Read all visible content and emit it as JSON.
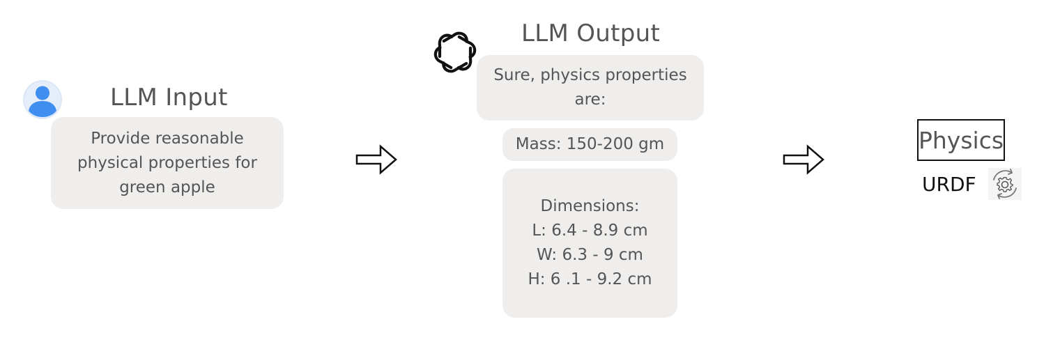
{
  "input": {
    "title": "LLM Input",
    "text_lines": [
      "Provide reasonable",
      "physical properties for",
      "green apple"
    ]
  },
  "output": {
    "title": "LLM Output",
    "intro_lines": [
      "Sure, physics properties",
      "are:"
    ],
    "mass": "Mass: 150-200 gm",
    "dimensions_lines": [
      "Dimensions:",
      "L: 6.4 - 8.9 cm",
      "W: 6.3 - 9 cm",
      "H: 6 .1 - 9.2 cm"
    ]
  },
  "result": {
    "physics_label": "Physics",
    "urdf_label": "URDF"
  },
  "icons": {
    "user": "user-avatar-icon",
    "llm": "openai-logo-icon",
    "arrow": "right-arrow-icon",
    "urdf": "gear-sync-icon"
  },
  "colors": {
    "bubble": "#efeeec",
    "avatar_bg": "#dbe7f7",
    "avatar_fg": "#3f8ef0",
    "text": "#555555"
  }
}
